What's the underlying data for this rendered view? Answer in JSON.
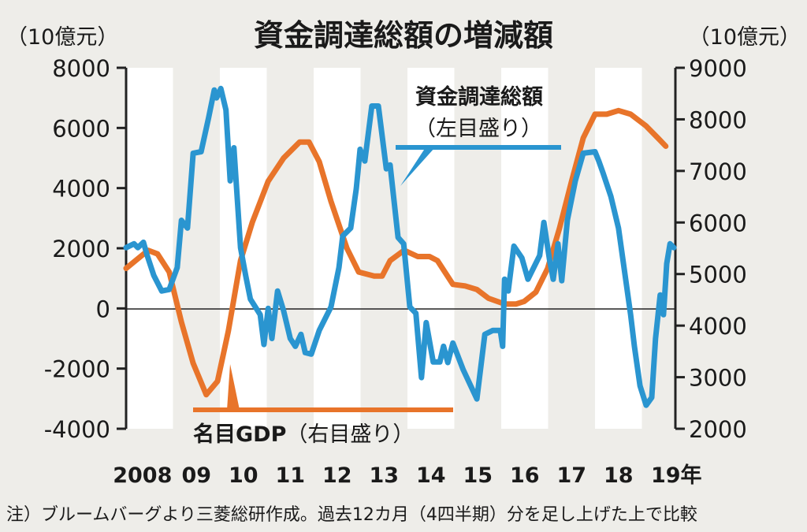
{
  "chart_data": {
    "type": "line",
    "title": "資金調達総額の増減額",
    "left_axis": {
      "unit": "（10億元）",
      "ylim": [
        -4000,
        8000
      ],
      "ticks": [
        "8000",
        "6000",
        "4000",
        "2000",
        "0",
        "-2000",
        "-4000"
      ]
    },
    "right_axis": {
      "unit": "（10億元）",
      "ylim": [
        2000,
        9000
      ],
      "ticks": [
        "9000",
        "8000",
        "7000",
        "6000",
        "5000",
        "4000",
        "3000",
        "2000"
      ]
    },
    "x_ticks": [
      "2008",
      "09",
      "10",
      "11",
      "12",
      "13",
      "14",
      "15",
      "16",
      "17",
      "18",
      "19年"
    ],
    "xlim": [
      2008,
      2019.7
    ],
    "grid": "alternating year bands",
    "footnote": "注）ブルームバーグより三菱総研作成。過去12カ月（4四半期）分を足し上げた上で比較",
    "series": [
      {
        "name": "資金調達総額",
        "axis_note": "（左目盛り）",
        "axis": "left",
        "color": "#2a95d0",
        "x": [
          2008.0,
          2008.17,
          2008.25,
          2008.37,
          2008.45,
          2008.59,
          2008.76,
          2008.92,
          2009.09,
          2009.18,
          2009.31,
          2009.43,
          2009.6,
          2009.76,
          2009.88,
          2009.93,
          2010.02,
          2010.13,
          2010.22,
          2010.3,
          2010.44,
          2010.55,
          2010.65,
          2010.86,
          2010.94,
          2011.03,
          2011.11,
          2011.23,
          2011.36,
          2011.5,
          2011.61,
          2011.73,
          2011.82,
          2011.95,
          2012.12,
          2012.37,
          2012.54,
          2012.62,
          2012.79,
          2012.91,
          2012.99,
          2013.09,
          2013.24,
          2013.34,
          2013.38,
          2013.55,
          2013.63,
          2013.8,
          2013.92,
          2014.05,
          2014.18,
          2014.3,
          2014.4,
          2014.55,
          2014.69,
          2014.77,
          2014.86,
          2014.97,
          2015.19,
          2015.48,
          2015.65,
          2015.82,
          2015.98,
          2016.03,
          2016.07,
          2016.15,
          2016.27,
          2016.44,
          2016.57,
          2016.82,
          2016.91,
          2017.03,
          2017.11,
          2017.21,
          2017.29,
          2017.41,
          2017.58,
          2017.75,
          2018.0,
          2018.08,
          2018.17,
          2018.34,
          2018.5,
          2018.76,
          2018.84,
          2018.96,
          2019.09,
          2019.21,
          2019.29,
          2019.39,
          2019.46,
          2019.53,
          2019.6,
          2019.68
        ],
        "y": [
          2020,
          2150,
          2020,
          2200,
          1760,
          1100,
          580,
          630,
          1360,
          2930,
          2670,
          5160,
          5210,
          6340,
          7260,
          7000,
          7310,
          6600,
          4240,
          5340,
          2020,
          1100,
          310,
          -210,
          -1200,
          0,
          -1000,
          580,
          -80,
          -1000,
          -1260,
          -860,
          -1470,
          -1520,
          -730,
          50,
          1360,
          2410,
          2670,
          3980,
          5290,
          4900,
          6730,
          6730,
          6730,
          4640,
          4770,
          2360,
          2150,
          50,
          -160,
          -2300,
          -470,
          -1780,
          -1780,
          -1260,
          -1800,
          -1150,
          -2040,
          -3010,
          -860,
          -730,
          -730,
          -1260,
          970,
          580,
          2070,
          1680,
          970,
          1760,
          2860,
          1620,
          970,
          2150,
          920,
          2930,
          4240,
          5160,
          5210,
          4900,
          4510,
          3720,
          2670,
          -210,
          -1260,
          -2570,
          -3220,
          -2960,
          -1000,
          450,
          -210,
          1490,
          2150,
          2020
        ]
      },
      {
        "name": "名目GDP",
        "axis_note": "（右目盛り）",
        "axis": "right",
        "color": "#e8742a",
        "x": [
          2008.0,
          2008.47,
          2008.67,
          2008.92,
          2009.18,
          2009.43,
          2009.71,
          2009.95,
          2010.18,
          2010.44,
          2010.69,
          2011.03,
          2011.36,
          2011.7,
          2011.9,
          2012.12,
          2012.37,
          2012.71,
          2012.96,
          2013.29,
          2013.46,
          2013.63,
          2013.93,
          2014.22,
          2014.47,
          2014.64,
          2014.97,
          2015.23,
          2015.48,
          2015.73,
          2016.07,
          2016.32,
          2016.49,
          2016.74,
          2016.99,
          2017.24,
          2017.5,
          2017.75,
          2018.0,
          2018.25,
          2018.5,
          2018.76,
          2019.09,
          2019.34,
          2019.51
        ],
        "y": [
          5110,
          5460,
          5390,
          5040,
          4070,
          3270,
          2660,
          2920,
          3890,
          5260,
          6000,
          6800,
          7250,
          7560,
          7560,
          7180,
          6410,
          5500,
          5040,
          4960,
          4960,
          5260,
          5460,
          5340,
          5340,
          5260,
          4800,
          4770,
          4700,
          4530,
          4420,
          4420,
          4470,
          4650,
          5110,
          5880,
          6800,
          7640,
          8100,
          8100,
          8170,
          8100,
          7870,
          7640,
          7480
        ]
      }
    ]
  }
}
